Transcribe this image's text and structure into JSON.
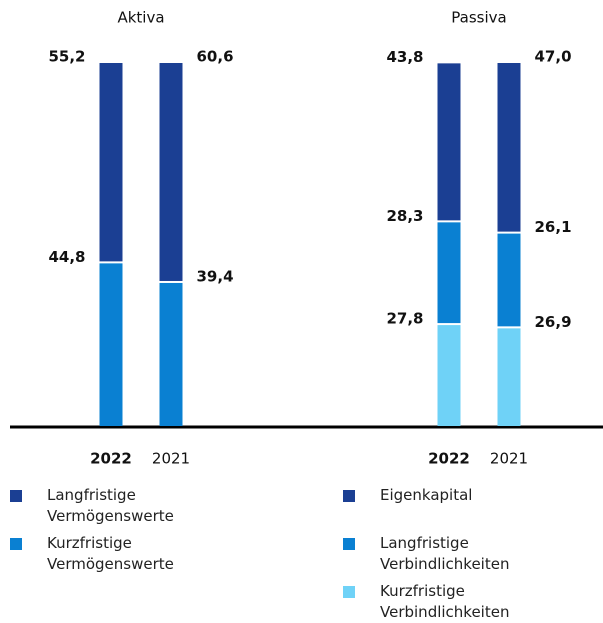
{
  "chart_data": [
    {
      "type": "bar",
      "stacked": true,
      "title": "Aktiva",
      "categories": [
        "2022",
        "2021"
      ],
      "ylim": [
        0,
        100
      ],
      "series": [
        {
          "name": "Langfristige Vermögenswerte",
          "color": "#1b3f93",
          "values": [
            55.2,
            60.6
          ],
          "value_labels": [
            "55,2",
            "60,6"
          ]
        },
        {
          "name": "Kurzfristige Vermögenswerte",
          "color": "#0a80d2",
          "values": [
            44.8,
            39.4
          ],
          "value_labels": [
            "44,8",
            "39,4"
          ]
        }
      ]
    },
    {
      "type": "bar",
      "stacked": true,
      "title": "Passiva",
      "categories": [
        "2022",
        "2021"
      ],
      "ylim": [
        0,
        100
      ],
      "series": [
        {
          "name": "Eigenkapital",
          "color": "#1b3f93",
          "values": [
            43.8,
            47.0
          ],
          "value_labels": [
            "43,8",
            "47,0"
          ]
        },
        {
          "name": "Langfristige Verbindlichkeiten",
          "color": "#0a80d2",
          "values": [
            28.3,
            26.1
          ],
          "value_labels": [
            "28,3",
            "26,1"
          ]
        },
        {
          "name": "Kurzfristige Verbindlichkeiten",
          "color": "#6fd2f7",
          "values": [
            27.8,
            26.9
          ],
          "value_labels": [
            "27,8",
            "26,9"
          ]
        }
      ]
    }
  ]
}
